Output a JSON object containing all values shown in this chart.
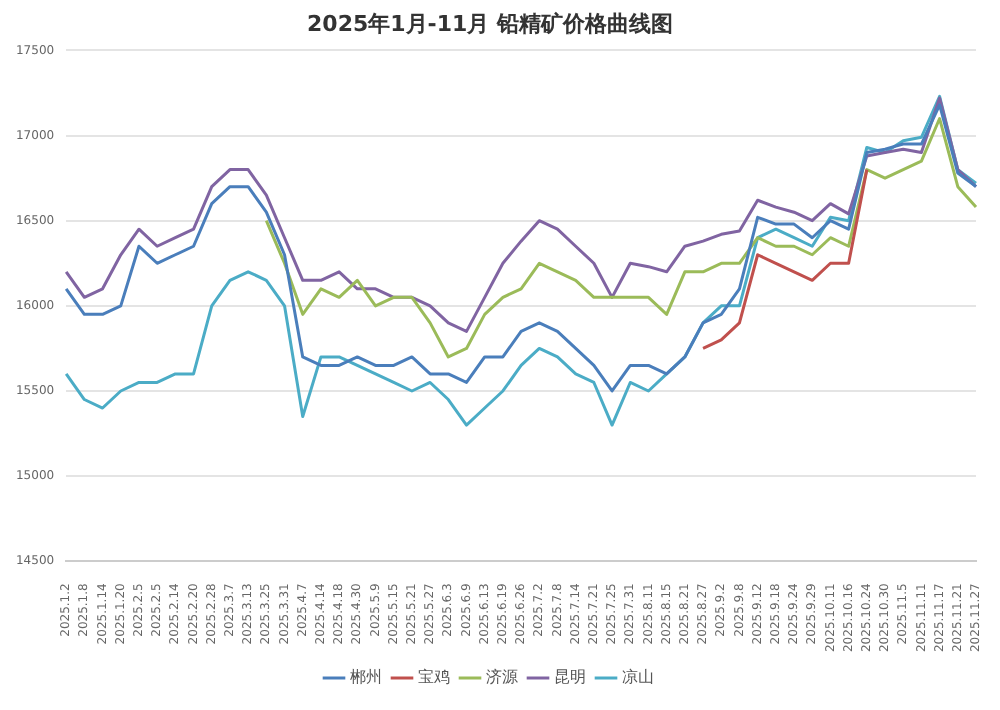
{
  "chart_data": {
    "type": "line",
    "title": "2025年1月-11月 铅精矿价格曲线图",
    "categories": [
      "2025.1.2",
      "2025.1.8",
      "2025.1.14",
      "2025.1.20",
      "2025.2.5",
      "2025.2.5",
      "2025.2.14",
      "2025.2.20",
      "2025.2.28",
      "2025.3.7",
      "2025.3.13",
      "2025.3.25",
      "2025.3.31",
      "2025.4.7",
      "2025.4.14",
      "2025.4.18",
      "2025.4.30",
      "2025.5.9",
      "2025.5.15",
      "2025.5.21",
      "2025.5.27",
      "2025.6.3",
      "2025.6.9",
      "2025.6.13",
      "2025.6.19",
      "2025.6.26",
      "2025.7.2",
      "2025.7.8",
      "2025.7.14",
      "2025.7.21",
      "2025.7.25",
      "2025.7.31",
      "2025.8.11",
      "2025.8.15",
      "2025.8.21",
      "2025.8.27",
      "2025.9.2",
      "2025.9.8",
      "2025.9.12",
      "2025.9.18",
      "2025.9.24",
      "2025.9.29",
      "2025.10.11",
      "2025.10.16",
      "2025.10.24",
      "2025.10.30",
      "2025.11.5",
      "2025.11.11",
      "2025.11.17",
      "2025.11.21",
      "2025.11.27"
    ],
    "series": [
      {
        "name": "郴州",
        "color": "#4a7ebb",
        "values": [
          16100,
          15950,
          15950,
          16000,
          16350,
          16250,
          16300,
          16350,
          16600,
          16700,
          16700,
          16550,
          16300,
          15700,
          15650,
          15650,
          15700,
          15650,
          15650,
          15700,
          15600,
          15600,
          15550,
          15700,
          15700,
          15850,
          15900,
          15850,
          15750,
          15650,
          15500,
          15650,
          15650,
          15600,
          15700,
          15900,
          15950,
          16100,
          16520,
          16480,
          16480,
          16400,
          16500,
          16450,
          16900,
          16920,
          16950,
          16950,
          17180,
          16780,
          16700
        ]
      },
      {
        "name": "宝鸡",
        "color": "#c0504d",
        "values": [
          null,
          null,
          null,
          null,
          null,
          null,
          null,
          null,
          null,
          null,
          null,
          null,
          null,
          null,
          null,
          null,
          null,
          null,
          null,
          null,
          null,
          null,
          null,
          null,
          null,
          null,
          null,
          null,
          null,
          null,
          null,
          null,
          null,
          null,
          null,
          15750,
          15800,
          15900,
          16300,
          16250,
          16200,
          16150,
          16250,
          16250,
          16800,
          null,
          null,
          null,
          null,
          null,
          null
        ]
      },
      {
        "name": "济源",
        "color": "#9bbb59",
        "values": [
          null,
          null,
          null,
          null,
          null,
          null,
          null,
          null,
          null,
          null,
          null,
          16500,
          16250,
          15950,
          16100,
          16050,
          16150,
          16000,
          16050,
          16050,
          15900,
          15700,
          15750,
          15950,
          16050,
          16100,
          16250,
          16200,
          16150,
          16050,
          16050,
          16050,
          16050,
          15950,
          16200,
          16200,
          16250,
          16250,
          16400,
          16350,
          16350,
          16300,
          16400,
          16350,
          16800,
          16750,
          16800,
          16850,
          17100,
          16700,
          16580
        ]
      },
      {
        "name": "昆明",
        "color": "#8064a2",
        "values": [
          16200,
          16050,
          16100,
          16300,
          16450,
          16350,
          16400,
          16450,
          16700,
          16800,
          16800,
          16650,
          16400,
          16150,
          16150,
          16200,
          16100,
          16100,
          16050,
          16050,
          16000,
          15900,
          15850,
          16050,
          16250,
          16380,
          16500,
          16450,
          16350,
          16250,
          16050,
          16250,
          16230,
          16200,
          16350,
          16380,
          16420,
          16440,
          16620,
          16580,
          16550,
          16500,
          16600,
          16540,
          16880,
          16900,
          16920,
          16900,
          17220,
          16800,
          16700
        ]
      },
      {
        "name": "凉山",
        "color": "#4bacc6",
        "values": [
          15600,
          15450,
          15400,
          15500,
          15550,
          15550,
          15600,
          15600,
          16000,
          16150,
          16200,
          16150,
          16000,
          15350,
          15700,
          15700,
          15650,
          15600,
          15550,
          15500,
          15550,
          15450,
          15300,
          15400,
          15500,
          15650,
          15750,
          15700,
          15600,
          15550,
          15300,
          15550,
          15500,
          15600,
          15700,
          15900,
          16000,
          16000,
          16400,
          16450,
          16400,
          16350,
          16520,
          16500,
          16930,
          16900,
          16970,
          16990,
          17230,
          16800,
          16720
        ]
      }
    ],
    "ylim": [
      14500,
      17500
    ],
    "yticks": [
      14500,
      15000,
      15500,
      16000,
      16500,
      17000,
      17500
    ],
    "grid": "y",
    "legend": "bottom"
  }
}
